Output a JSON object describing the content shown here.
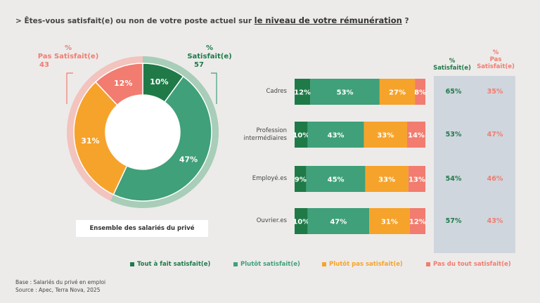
{
  "title": {
    "prefix": "> Êtes-vous satisfait(e) ou non de votre poste actuel sur ",
    "highlight": "le niveau de votre rémunération",
    "suffix": " ?"
  },
  "donut": {
    "caption": "Ensemble des salariés du privé",
    "left_label": {
      "pct": "%",
      "name": "Pas Satisfait(e)",
      "value": "43"
    },
    "right_label": {
      "pct": "%",
      "name": "Satisfait(e)",
      "value": "57"
    }
  },
  "columns": {
    "satisfied": {
      "pct": "%",
      "name": "Satisfait(e)"
    },
    "unsatisfied": {
      "pct": "%",
      "name1": "Pas",
      "name2": "Satisfait(e)"
    }
  },
  "legend": [
    {
      "label": "Tout à fait satisfait(e)",
      "color": "#1f7a48"
    },
    {
      "label": "Plutôt satisfait(e)",
      "color": "#3fa07a"
    },
    {
      "label": "Plutôt pas satisfait(e)",
      "color": "#f6a32b"
    },
    {
      "label": "Pas du tout satisfait(e)",
      "color": "#f17c6f"
    }
  ],
  "footer": {
    "base": "Base : Salariés du privé en emploi",
    "source": "Source : Apec, Terra Nova, 2025"
  },
  "colors": {
    "very_satisfied": "#1f7a48",
    "satisfied": "#3fa07a",
    "not_really": "#f6a32b",
    "not_at_all": "#f17c6f",
    "satisfied_text": "#1f7a48",
    "unsatisfied_text": "#f17c6f"
  },
  "chart_data": [
    {
      "type": "pie",
      "title": "Ensemble des salariés du privé",
      "categories": [
        "Tout à fait satisfait(e)",
        "Plutôt satisfait(e)",
        "Plutôt pas satisfait(e)",
        "Pas du tout satisfait(e)"
      ],
      "values": [
        10,
        47,
        31,
        12
      ],
      "labels": [
        "10%",
        "47%",
        "31%",
        "12%"
      ]
    },
    {
      "type": "bar",
      "stacked": true,
      "orientation": "horizontal",
      "categories": [
        "Cadres",
        "Profession intermédiaires",
        "Employé.es",
        "Ouvrier.es"
      ],
      "series": [
        {
          "name": "Tout à fait satisfait(e)",
          "values": [
            12,
            10,
            9,
            10
          ],
          "labels": [
            "12%",
            "10%",
            "9%",
            "10%"
          ]
        },
        {
          "name": "Plutôt satisfait(e)",
          "values": [
            53,
            43,
            45,
            47
          ],
          "labels": [
            "53%",
            "43%",
            "45%",
            "47%"
          ]
        },
        {
          "name": "Plutôt pas satisfait(e)",
          "values": [
            27,
            33,
            33,
            31
          ],
          "labels": [
            "27%",
            "33%",
            "33%",
            "31%"
          ]
        },
        {
          "name": "Pas du tout satisfait(e)",
          "values": [
            8,
            14,
            13,
            12
          ],
          "labels": [
            "8%",
            "14%",
            "13%",
            "12%"
          ]
        }
      ],
      "totals_satisfied": [
        "65%",
        "53%",
        "54%",
        "57%"
      ],
      "totals_unsatisfied": [
        "35%",
        "47%",
        "46%",
        "43%"
      ]
    }
  ]
}
